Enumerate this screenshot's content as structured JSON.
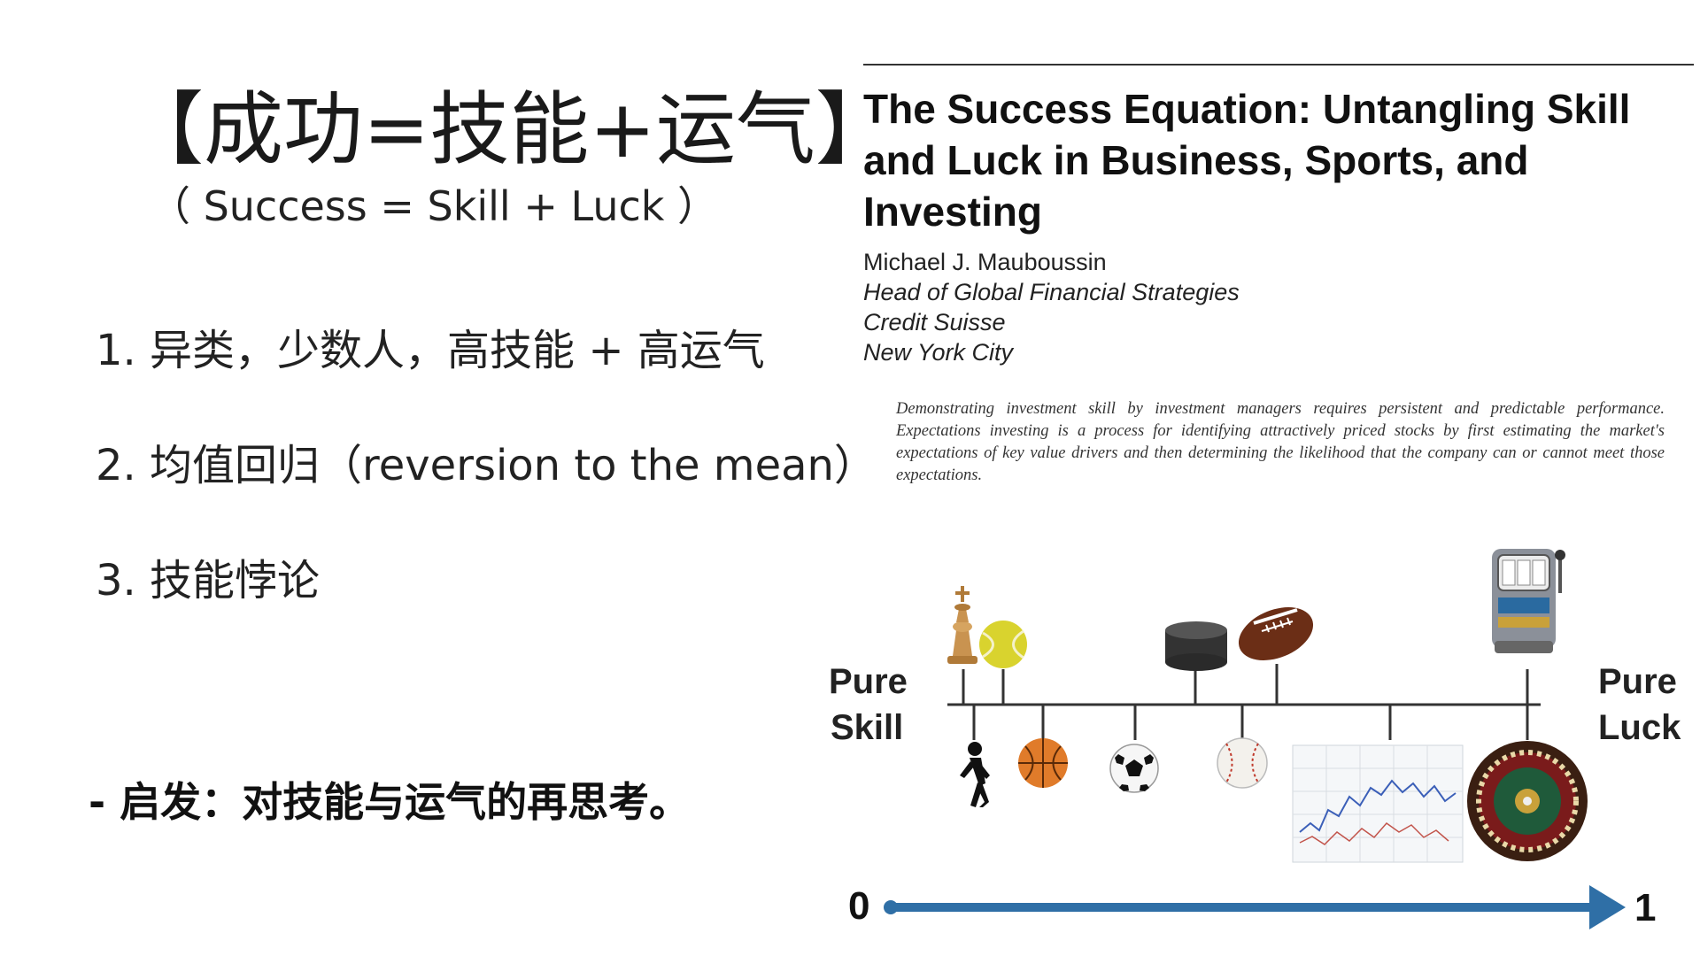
{
  "slide": {
    "title": "【成功=技能+运气】",
    "subtitle": "（ Success = Skill + Luck  ）",
    "points": [
      "1.  异类，少数人，高技能 + 高运气",
      "2. 均值回归（reversion to the mean）",
      "3. 技能悖论"
    ],
    "takeaway": "- 启发：对技能与运气的再思考。"
  },
  "paper": {
    "title": "The Success Equation: Untangling Skill and Luck in Business, Sports, and Investing",
    "author": "Michael J. Mauboussin",
    "position": "Head of Global Financial Strategies",
    "company": "Credit Suisse",
    "location": "New York City",
    "abstract": "Demonstrating investment skill by investment managers requires persistent and predictable performance. Expectations investing is a process for identifying attractively priced stocks by first estimating the market's expectations of key value drivers and then determining the likelihood that the company can or cannot meet those expectations."
  },
  "continuum": {
    "left_label_line1": "Pure",
    "left_label_line2": "Skill",
    "right_label_line1": "Pure",
    "right_label_line2": "Luck",
    "axis_start": "0",
    "axis_end": "1",
    "axis_color": "#2f6fa6",
    "top_items": [
      "chess-icon",
      "tennis-ball-icon",
      "hockey-puck-icon",
      "football-icon",
      "slot-machine-icon"
    ],
    "bottom_items": [
      "runner-icon",
      "basketball-icon",
      "soccer-ball-icon",
      "baseball-icon",
      "stock-chart-icon",
      "roulette-wheel-icon"
    ]
  }
}
